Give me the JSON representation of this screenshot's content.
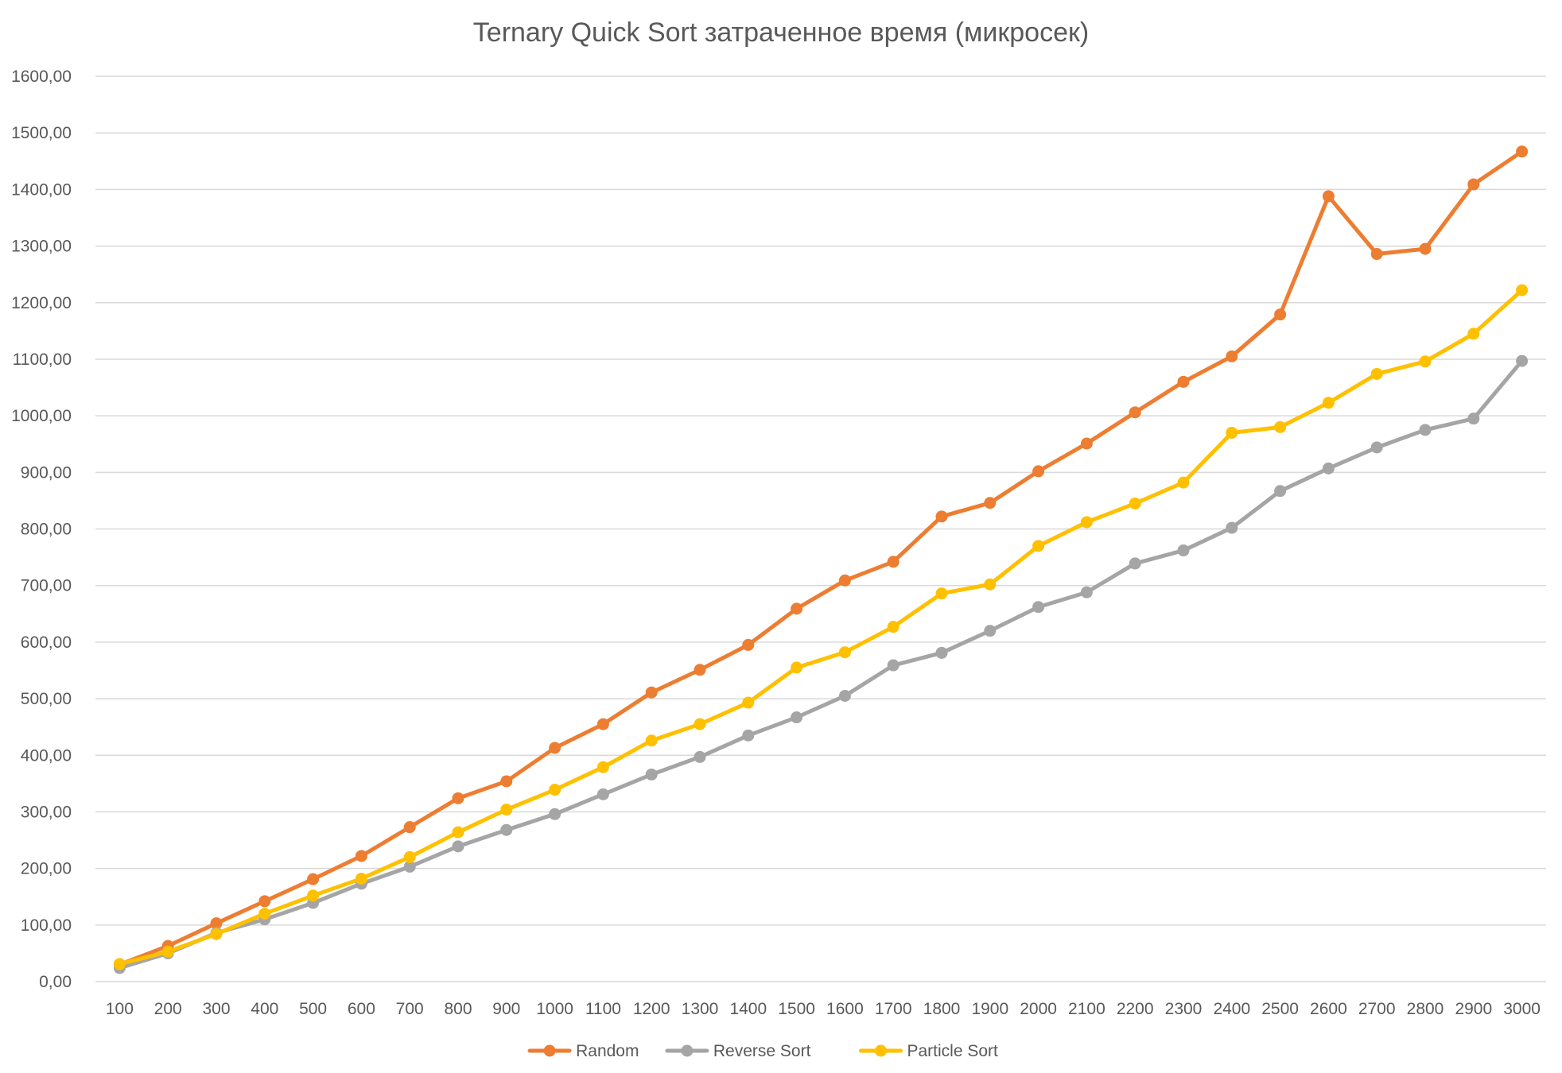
{
  "chart_data": {
    "type": "line",
    "title": "Ternary Quick Sort затраченное время (микросек)",
    "xlabel": "",
    "ylabel": "",
    "ylim": [
      0,
      1600
    ],
    "y_ticks": [
      "0,00",
      "100,00",
      "200,00",
      "300,00",
      "400,00",
      "500,00",
      "600,00",
      "700,00",
      "800,00",
      "900,00",
      "1000,00",
      "1100,00",
      "1200,00",
      "1300,00",
      "1400,00",
      "1500,00",
      "1600,00"
    ],
    "grid": true,
    "legend_position": "bottom",
    "categories": [
      "100",
      "200",
      "300",
      "400",
      "500",
      "600",
      "700",
      "800",
      "900",
      "1000",
      "1100",
      "1200",
      "1300",
      "1400",
      "1500",
      "1600",
      "1700",
      "1800",
      "1900",
      "2000",
      "2100",
      "2200",
      "2300",
      "2400",
      "2500",
      "2600",
      "2700",
      "2800",
      "2900",
      "3000"
    ],
    "series": [
      {
        "name": "Random",
        "color": "#ed7d31",
        "values": [
          30,
          63,
          103,
          142,
          181,
          222,
          273,
          324,
          354,
          413,
          455,
          511,
          551,
          595,
          659,
          709,
          742,
          822,
          846,
          902,
          951,
          1006,
          1060,
          1105,
          1179,
          1388,
          1286,
          1295,
          1409,
          1467
        ]
      },
      {
        "name": "Reverse Sort",
        "color": "#a5a5a5",
        "values": [
          24,
          50,
          86,
          110,
          139,
          173,
          203,
          239,
          268,
          296,
          331,
          366,
          397,
          435,
          467,
          505,
          559,
          581,
          620,
          662,
          688,
          739,
          762,
          802,
          867,
          907,
          944,
          975,
          995,
          1097
        ]
      },
      {
        "name": "Particle Sort",
        "color": "#ffc000",
        "values": [
          31,
          53,
          84,
          120,
          152,
          182,
          220,
          264,
          304,
          339,
          379,
          426,
          455,
          493,
          555,
          582,
          627,
          686,
          702,
          770,
          812,
          845,
          882,
          970,
          980,
          1023,
          1074,
          1096,
          1145,
          1222
        ]
      }
    ]
  }
}
